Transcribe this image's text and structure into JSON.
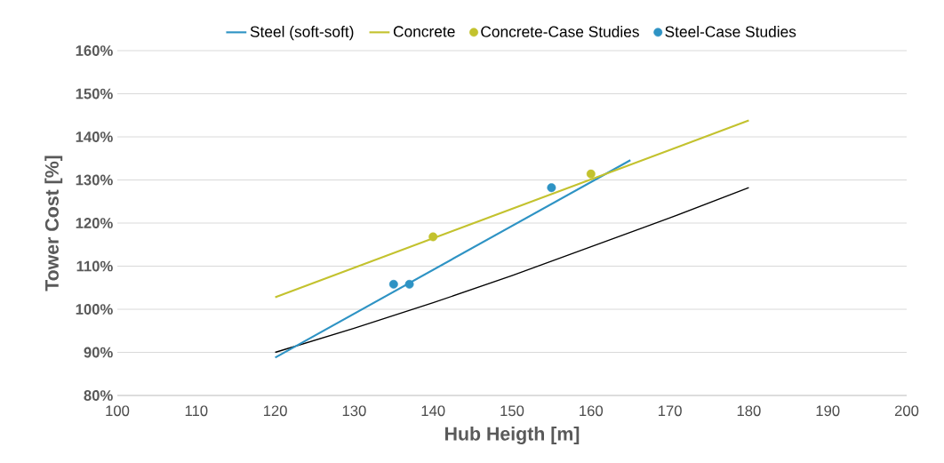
{
  "chart_data": {
    "type": "line",
    "xlabel": "Hub Heigth [m]",
    "ylabel": "Tower Cost  [%]",
    "xlim": [
      100,
      200
    ],
    "xticks": [
      100,
      110,
      120,
      130,
      140,
      150,
      160,
      170,
      180,
      190,
      200
    ],
    "ylim": [
      80,
      160
    ],
    "yticks": [
      {
        "value": 80,
        "label": "80%"
      },
      {
        "value": 90,
        "label": "90%"
      },
      {
        "value": 100,
        "label": "100%"
      },
      {
        "value": 110,
        "label": "110%"
      },
      {
        "value": 120,
        "label": "120%"
      },
      {
        "value": 130,
        "label": "130%"
      },
      {
        "value": 140,
        "label": "140%"
      },
      {
        "value": 150,
        "label": "150%"
      },
      {
        "value": 160,
        "label": "160%"
      }
    ],
    "grid": "y",
    "legend": "top",
    "series": [
      {
        "color": "#000000",
        "marker": "none",
        "line_style": "solid",
        "x": [
          120,
          130,
          140,
          150,
          160,
          170,
          180
        ],
        "values": [
          90,
          95.6,
          101.5,
          107.8,
          114.5,
          121.2,
          128.2
        ]
      },
      {
        "name": "Steel (soft-soft)",
        "color": "#2e93c4",
        "marker": "none",
        "line_style": "solid",
        "x": [
          120,
          165
        ],
        "values": [
          88.8,
          134.6
        ]
      },
      {
        "name": "Concrete",
        "color": "#c3c22e",
        "marker": "none",
        "line_style": "solid",
        "x": [
          120,
          180
        ],
        "values": [
          102.8,
          143.8
        ]
      },
      {
        "type": "scatter",
        "name": "Concrete-Case Studies",
        "color": "#c3c22e",
        "marker": "circle",
        "x": [
          140,
          160
        ],
        "values": [
          116.8,
          131.4
        ]
      },
      {
        "type": "scatter",
        "name": "Steel-Case Studies",
        "color": "#2e93c4",
        "marker": "circle",
        "x": [
          135,
          137,
          155
        ],
        "values": [
          105.8,
          105.8,
          128.2
        ]
      }
    ]
  }
}
